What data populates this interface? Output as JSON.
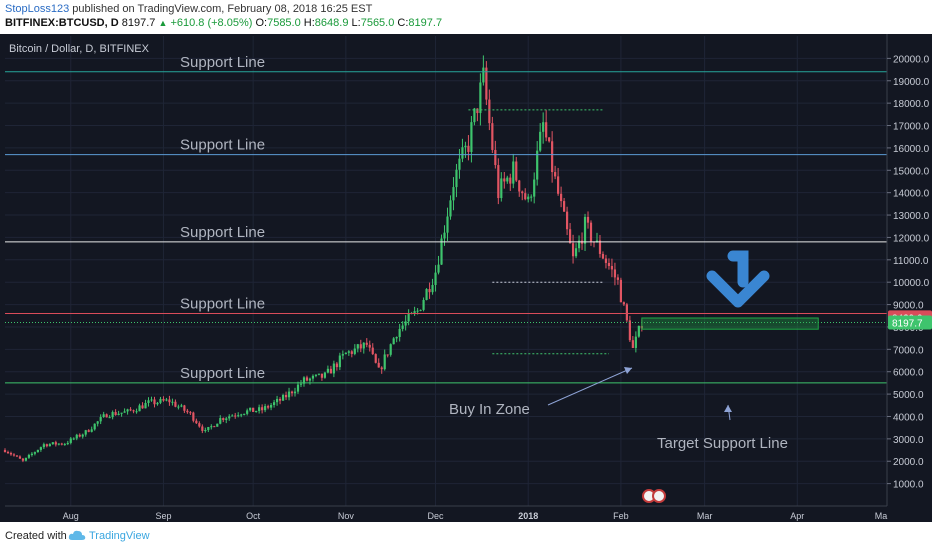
{
  "header": {
    "author": "StopLoss123",
    "published_text": "published on TradingView.com, February 08, 2018 16:25 EST",
    "symbol": "BITFINEX:BTCUSD, D",
    "last": "8197.7",
    "change": "+610.8 (+8.05%)",
    "open_label": "O:",
    "open": "7585.0",
    "high_label": "H:",
    "high": "8648.9",
    "low_label": "L:",
    "low": "7565.0",
    "close_label": "C:",
    "close": "8197.7"
  },
  "footer": {
    "created_with": "Created with",
    "brand": "TradingView"
  },
  "colors": {
    "background": "#131722",
    "up": "#3ec46d",
    "down": "#e25563",
    "grid": "#1f2536",
    "axis_text": "#c8ccd6",
    "annotation_text": "#b0b5c0",
    "arrow_blue": "#3a86d2",
    "buy_zone": "#1fa846"
  },
  "chart_data": {
    "type": "candlestick",
    "title": "Bitcoin / Dollar, D, BITFINEX",
    "x_tick_labels": [
      "Aug",
      "Sep",
      "Oct",
      "Nov",
      "Dec",
      "2018",
      "Feb",
      "Mar",
      "Apr",
      "Ma"
    ],
    "y_tick_labels": [
      "1000.0",
      "2000.0",
      "3000.0",
      "4000.0",
      "5000.0",
      "6000.0",
      "7000.0",
      "8000.0",
      "9000.0",
      "10000.0",
      "11000.0",
      "12000.0",
      "13000.0",
      "14000.0",
      "15000.0",
      "16000.0",
      "17000.0",
      "18000.0",
      "19000.0",
      "20000.0"
    ],
    "ylim": [
      0,
      21000
    ],
    "x_range": [
      "2017-07-10",
      "2018-05-01"
    ],
    "price_labels": [
      {
        "text": "8429.0",
        "value": 8429,
        "color": "#d94c5a"
      },
      {
        "text": "8197.7",
        "value": 8197.7,
        "color": "#3ec46d"
      }
    ],
    "support_lines": [
      {
        "label": "Support Line",
        "value": 19400,
        "color": "#26a69a"
      },
      {
        "label": "Support Line",
        "value": 15700,
        "color": "#5b9bd5"
      },
      {
        "label": "Support Line",
        "value": 11800,
        "color": "#e8e8e8"
      },
      {
        "label": "Support Line",
        "value": 8600,
        "color": "#d94c5a"
      },
      {
        "label": "Support Line",
        "value": 5500,
        "color": "#3ec46d"
      }
    ],
    "annotations": [
      {
        "text": "Buy In Zone"
      },
      {
        "text": "Target Support Line"
      }
    ],
    "buy_zone": {
      "from_date": "2018-02-08",
      "to_date": "2018-04-08",
      "low": 7900,
      "high": 8400
    },
    "series": [
      {
        "name": "BTCUSD",
        "points": [
          [
            "2017-07-10",
            2500
          ],
          [
            "2017-07-16",
            2000
          ],
          [
            "2017-07-23",
            2750
          ],
          [
            "2017-07-30",
            2800
          ],
          [
            "2017-08-06",
            3300
          ],
          [
            "2017-08-13",
            4100
          ],
          [
            "2017-08-20",
            4200
          ],
          [
            "2017-08-27",
            4600
          ],
          [
            "2017-09-03",
            4700
          ],
          [
            "2017-09-10",
            4100
          ],
          [
            "2017-09-15",
            3300
          ],
          [
            "2017-09-20",
            3900
          ],
          [
            "2017-09-27",
            4200
          ],
          [
            "2017-10-04",
            4300
          ],
          [
            "2017-10-11",
            4800
          ],
          [
            "2017-10-18",
            5600
          ],
          [
            "2017-10-25",
            5800
          ],
          [
            "2017-11-01",
            6800
          ],
          [
            "2017-11-08",
            7200
          ],
          [
            "2017-11-12",
            6000
          ],
          [
            "2017-11-18",
            7800
          ],
          [
            "2017-11-25",
            8700
          ],
          [
            "2017-12-01",
            10500
          ],
          [
            "2017-12-07",
            14500
          ],
          [
            "2017-12-12",
            16200
          ],
          [
            "2017-12-17",
            19100
          ],
          [
            "2017-12-22",
            14000
          ],
          [
            "2017-12-27",
            15000
          ],
          [
            "2018-01-01",
            13500
          ],
          [
            "2018-01-06",
            17000
          ],
          [
            "2018-01-10",
            14500
          ],
          [
            "2018-01-16",
            11000
          ],
          [
            "2018-01-20",
            12500
          ],
          [
            "2018-01-26",
            11200
          ],
          [
            "2018-01-31",
            10000
          ],
          [
            "2018-02-05",
            7000
          ],
          [
            "2018-02-08",
            8197.7
          ]
        ]
      }
    ]
  }
}
